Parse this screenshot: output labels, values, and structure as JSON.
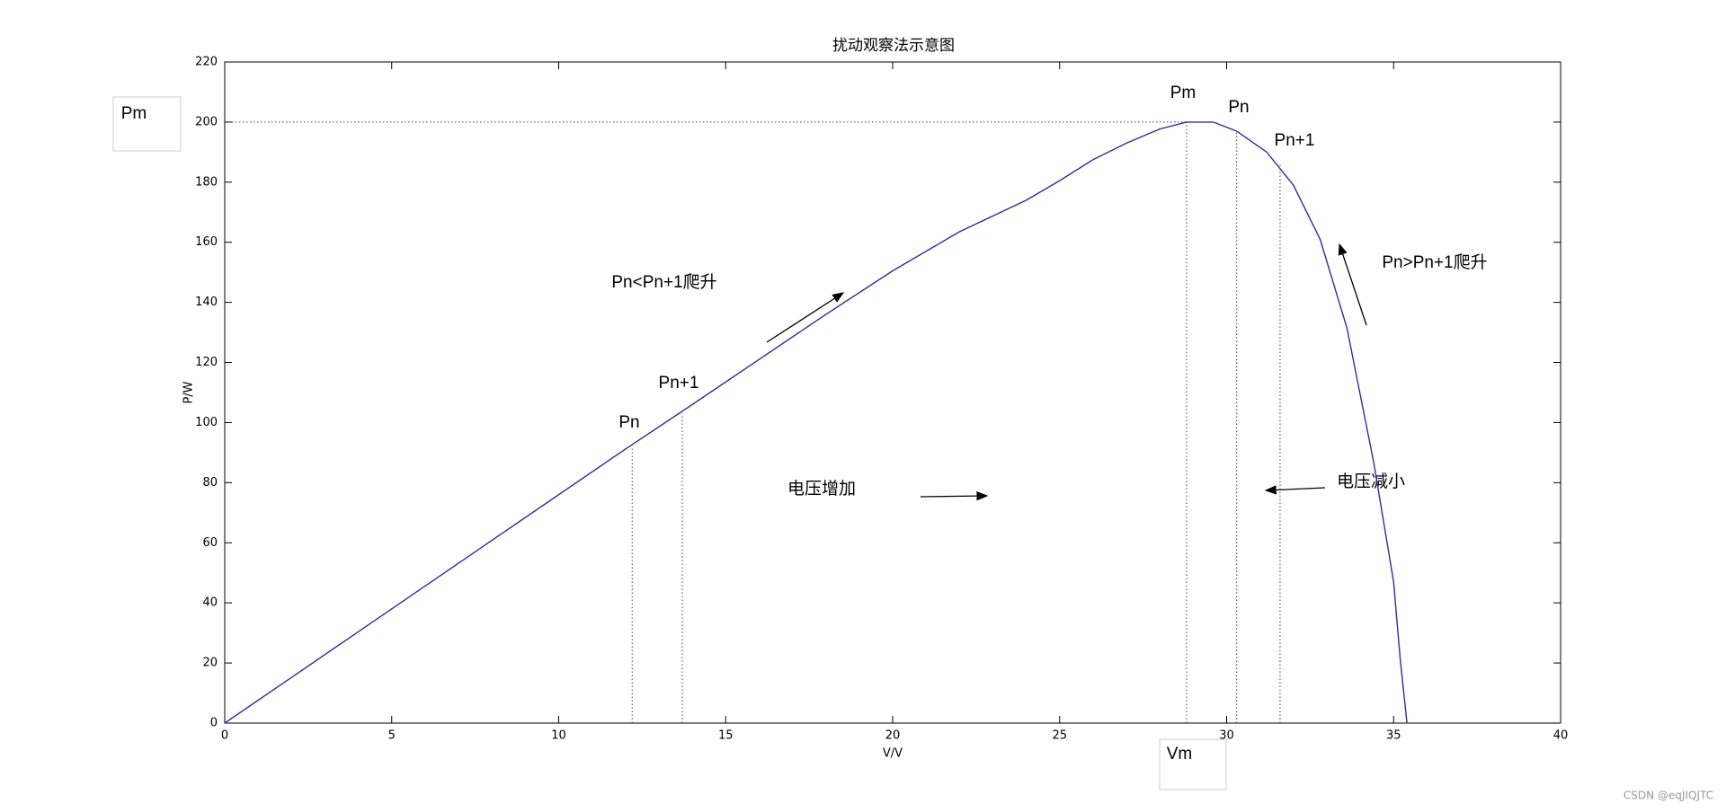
{
  "chart_data": {
    "type": "line",
    "title": "扰动观察法示意图",
    "x_label": "V/V",
    "y_label": "P/W",
    "x": [
      0,
      2,
      4,
      6,
      8,
      10,
      12,
      14,
      16,
      18,
      20,
      22,
      24,
      25,
      26,
      27,
      28,
      28.8,
      29.6,
      30.3,
      31.2,
      32,
      32.8,
      33.6,
      34.4,
      35,
      35.2,
      35.4
    ],
    "series": [
      {
        "name": "P",
        "color": "#2e2e9c",
        "values": [
          0,
          15.2,
          30.4,
          45.6,
          60.8,
          76,
          91.2,
          106,
          121,
          136,
          150.5,
          163.5,
          174,
          180.5,
          187.5,
          193,
          197.7,
          200,
          200,
          197,
          190,
          179,
          161,
          131.6,
          87,
          47,
          21,
          0
        ]
      }
    ],
    "xlim": [
      0,
      40
    ],
    "ylim": [
      0,
      220
    ],
    "xticks": [
      0,
      5,
      10,
      15,
      20,
      25,
      30,
      35,
      40
    ],
    "yticks": [
      0,
      20,
      40,
      60,
      80,
      100,
      120,
      140,
      160,
      180,
      200,
      220
    ],
    "vlines": [
      {
        "x": 12.2,
        "y": 92
      },
      {
        "x": 13.7,
        "y": 103
      },
      {
        "x": 28.8,
        "y": 200
      },
      {
        "x": 30.3,
        "y": 197
      },
      {
        "x": 31.6,
        "y": 186
      }
    ],
    "hlines": [
      {
        "y": 200,
        "x": 28.8
      }
    ],
    "annotations": [
      "Pm",
      "Vm",
      "Pm",
      "Pn",
      "Pn+1",
      "Pn",
      "Pn+1",
      "Pn<Pn+1爬升",
      "Pn>Pn+1爬升",
      "电压增加",
      "电压减小"
    ],
    "watermark": "CSDN @eqJIQJTC"
  }
}
